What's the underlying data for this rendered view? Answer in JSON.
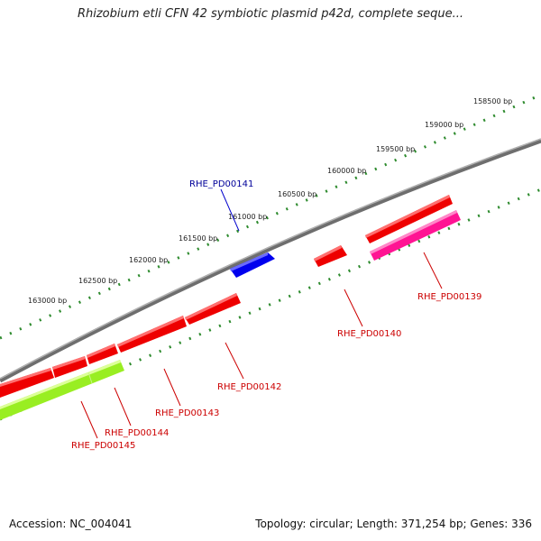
{
  "title": "Rhizobium etli CFN 42 symbiotic plasmid p42d, complete seque...",
  "footer": {
    "accession": "Accession: NC_004041",
    "summary": "Topology: circular; Length: 371,254 bp; Genes: 336"
  },
  "colors": {
    "backbone": "#808080",
    "ticks": "#2e8b2e",
    "forward_gene": "#0000ff",
    "reverse_gene": "#ff0000",
    "highlight_gene": "#ff1493",
    "lime_gene": "#99ee22"
  },
  "scale_labels": [
    "158500 bp",
    "159000 bp",
    "159500 bp",
    "160000 bp",
    "160500 bp",
    "161000 bp",
    "161500 bp",
    "162000 bp",
    "162500 bp",
    "163000 bp"
  ],
  "genes": [
    {
      "label": "RHE_PD00141",
      "color": "#000099"
    },
    {
      "label": "RHE_PD00139",
      "color": "#cc0000"
    },
    {
      "label": "RHE_PD00140",
      "color": "#cc0000"
    },
    {
      "label": "RHE_PD00142",
      "color": "#cc0000"
    },
    {
      "label": "RHE_PD00143",
      "color": "#cc0000"
    },
    {
      "label": "RHE_PD00144",
      "color": "#cc0000"
    },
    {
      "label": "RHE_PD00145",
      "color": "#cc0000"
    }
  ]
}
